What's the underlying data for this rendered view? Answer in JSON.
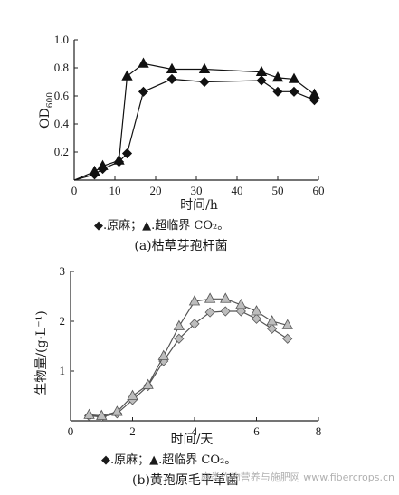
{
  "colors": {
    "axis": "#222222",
    "chart_a_series": "#111111",
    "chart_b_series_fill": "#bdbdbd",
    "chart_b_series_stroke": "#555555",
    "watermark": "#b0b0b0"
  },
  "watermark": "麻类作物营养与施肥网 www.fibercrops.cn",
  "chart_data": [
    {
      "type": "line",
      "xlabel": "时间/h",
      "ylabel": "OD600",
      "xlim": [
        0,
        60
      ],
      "ylim": [
        0,
        1.0
      ],
      "x_ticks": [
        "0",
        "10",
        "20",
        "30",
        "40",
        "50",
        "60"
      ],
      "y_ticks": [
        "0.2",
        "0.4",
        "0.6",
        "0.8",
        "1.0"
      ],
      "legend": [
        "◆.原麻",
        "▲.超临界 CO₂"
      ],
      "legend_text": "◆.原麻；▲.超临界 CO₂。",
      "caption": "(a)枯草芽孢杆菌",
      "grid": false,
      "series": [
        {
          "name": "原麻",
          "marker": "diamond",
          "points": [
            [
              0,
              0
            ],
            [
              5,
              0.04
            ],
            [
              7,
              0.08
            ],
            [
              11,
              0.13
            ],
            [
              13,
              0.19
            ],
            [
              17,
              0.63
            ],
            [
              24,
              0.72
            ],
            [
              32,
              0.7
            ],
            [
              46,
              0.71
            ],
            [
              50,
              0.63
            ],
            [
              54,
              0.63
            ],
            [
              59,
              0.57
            ]
          ]
        },
        {
          "name": "超临界 CO₂",
          "marker": "triangle",
          "points": [
            [
              0,
              0
            ],
            [
              5,
              0.06
            ],
            [
              7,
              0.1
            ],
            [
              11,
              0.14
            ],
            [
              13,
              0.74
            ],
            [
              17,
              0.83
            ],
            [
              24,
              0.79
            ],
            [
              32,
              0.79
            ],
            [
              46,
              0.77
            ],
            [
              50,
              0.73
            ],
            [
              54,
              0.72
            ],
            [
              59,
              0.61
            ]
          ]
        }
      ]
    },
    {
      "type": "line",
      "xlabel": "时间/天",
      "ylabel": "生物量/(g·L⁻¹)",
      "xlim": [
        0,
        8
      ],
      "ylim": [
        0,
        3
      ],
      "x_ticks": [
        "0",
        "2",
        "4",
        "6",
        "8"
      ],
      "y_ticks": [
        "1",
        "2",
        "3"
      ],
      "legend": [
        "◆.原麻",
        "▲.超临界 CO₂"
      ],
      "legend_text": "◆.原麻；▲.超临界 CO₂。",
      "caption": "(b)黄孢原毛平革菌",
      "grid": false,
      "series": [
        {
          "name": "原麻",
          "marker": "diamond",
          "points": [
            [
              0.6,
              0.1
            ],
            [
              1.0,
              0.08
            ],
            [
              1.5,
              0.15
            ],
            [
              2.0,
              0.42
            ],
            [
              2.5,
              0.7
            ],
            [
              3.0,
              1.2
            ],
            [
              3.5,
              1.65
            ],
            [
              4.0,
              1.95
            ],
            [
              4.5,
              2.18
            ],
            [
              5.0,
              2.2
            ],
            [
              5.5,
              2.2
            ],
            [
              6.0,
              2.05
            ],
            [
              6.5,
              1.85
            ],
            [
              7.0,
              1.65
            ]
          ]
        },
        {
          "name": "超临界 CO₂",
          "marker": "triangle",
          "points": [
            [
              0.6,
              0.12
            ],
            [
              1.0,
              0.1
            ],
            [
              1.5,
              0.18
            ],
            [
              2.0,
              0.5
            ],
            [
              2.5,
              0.72
            ],
            [
              3.0,
              1.3
            ],
            [
              3.5,
              1.9
            ],
            [
              4.0,
              2.4
            ],
            [
              4.5,
              2.45
            ],
            [
              5.0,
              2.45
            ],
            [
              5.5,
              2.33
            ],
            [
              6.0,
              2.2
            ],
            [
              6.5,
              2.0
            ],
            [
              7.0,
              1.92
            ]
          ]
        }
      ]
    }
  ]
}
